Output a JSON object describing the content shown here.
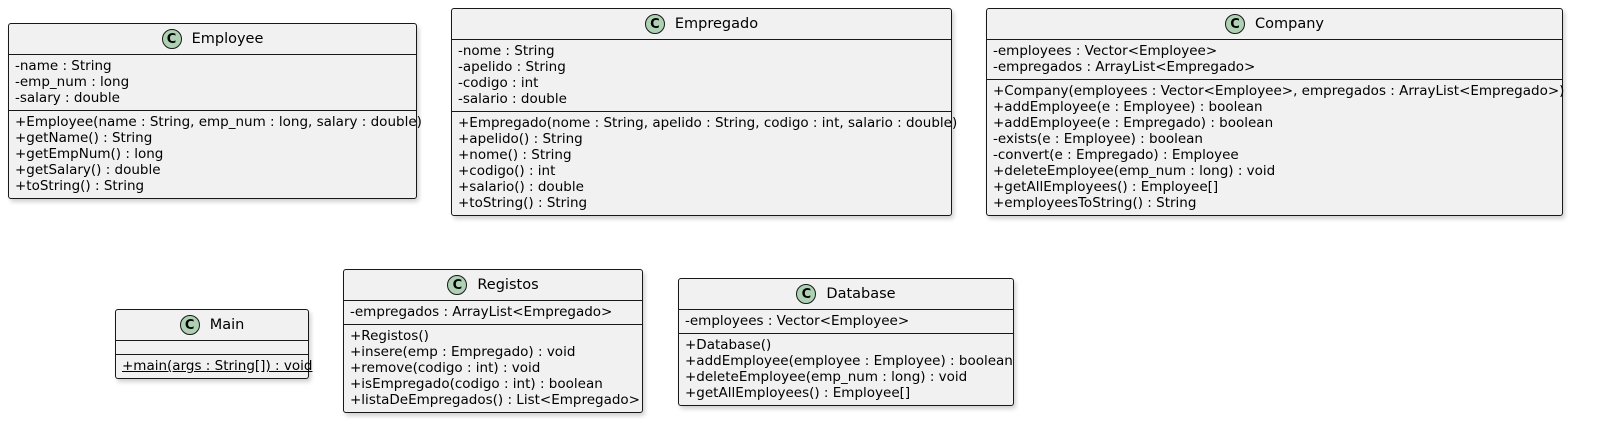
{
  "diagram": {
    "classes": [
      {
        "id": "employee",
        "badge": "C",
        "name": "Employee",
        "fields": [
          "-name : String",
          "-emp_num : long",
          "-salary : double"
        ],
        "methods": [
          "+Employee(name : String, emp_num : long, salary : double)",
          "+getName() : String",
          "+getEmpNum() : long",
          "+getSalary() : double",
          "+toString() : String"
        ]
      },
      {
        "id": "empregado",
        "badge": "C",
        "name": "Empregado",
        "fields": [
          "-nome : String",
          "-apelido : String",
          "-codigo : int",
          "-salario : double"
        ],
        "methods": [
          "+Empregado(nome : String, apelido : String, codigo : int, salario : double)",
          "+apelido() : String",
          "+nome() : String",
          "+codigo() : int",
          "+salario() : double",
          "+toString() : String"
        ]
      },
      {
        "id": "company",
        "badge": "C",
        "name": "Company",
        "fields": [
          "-employees : Vector<Employee>",
          "-empregados : ArrayList<Empregado>"
        ],
        "methods": [
          "+Company(employees : Vector<Employee>, empregados : ArrayList<Empregado>)",
          "+addEmployee(e : Employee) : boolean",
          "+addEmployee(e : Empregado) : boolean",
          "-exists(e : Employee) : boolean",
          "-convert(e : Empregado) : Employee",
          "+deleteEmployee(emp_num : long) : void",
          "+getAllEmployees() : Employee[]",
          "+employeesToString() : String"
        ]
      },
      {
        "id": "main",
        "badge": "C",
        "name": "Main",
        "fields": [],
        "methods": [
          "+main(args : String[]) : void"
        ],
        "static_methods": [
          0
        ]
      },
      {
        "id": "registos",
        "badge": "C",
        "name": "Registos",
        "fields": [
          "-empregados : ArrayList<Empregado>"
        ],
        "methods": [
          "+Registos()",
          "+insere(emp : Empregado) : void",
          "+remove(codigo : int) : void",
          "+isEmpregado(codigo : int) : boolean",
          "+listaDeEmpregados() : List<Empregado>"
        ]
      },
      {
        "id": "database",
        "badge": "C",
        "name": "Database",
        "fields": [
          "-employees : Vector<Employee>"
        ],
        "methods": [
          "+Database()",
          "+addEmployee(employee : Employee) : boolean",
          "+deleteEmployee(emp_num : long) : void",
          "+getAllEmployees() : Employee[]"
        ]
      }
    ]
  }
}
